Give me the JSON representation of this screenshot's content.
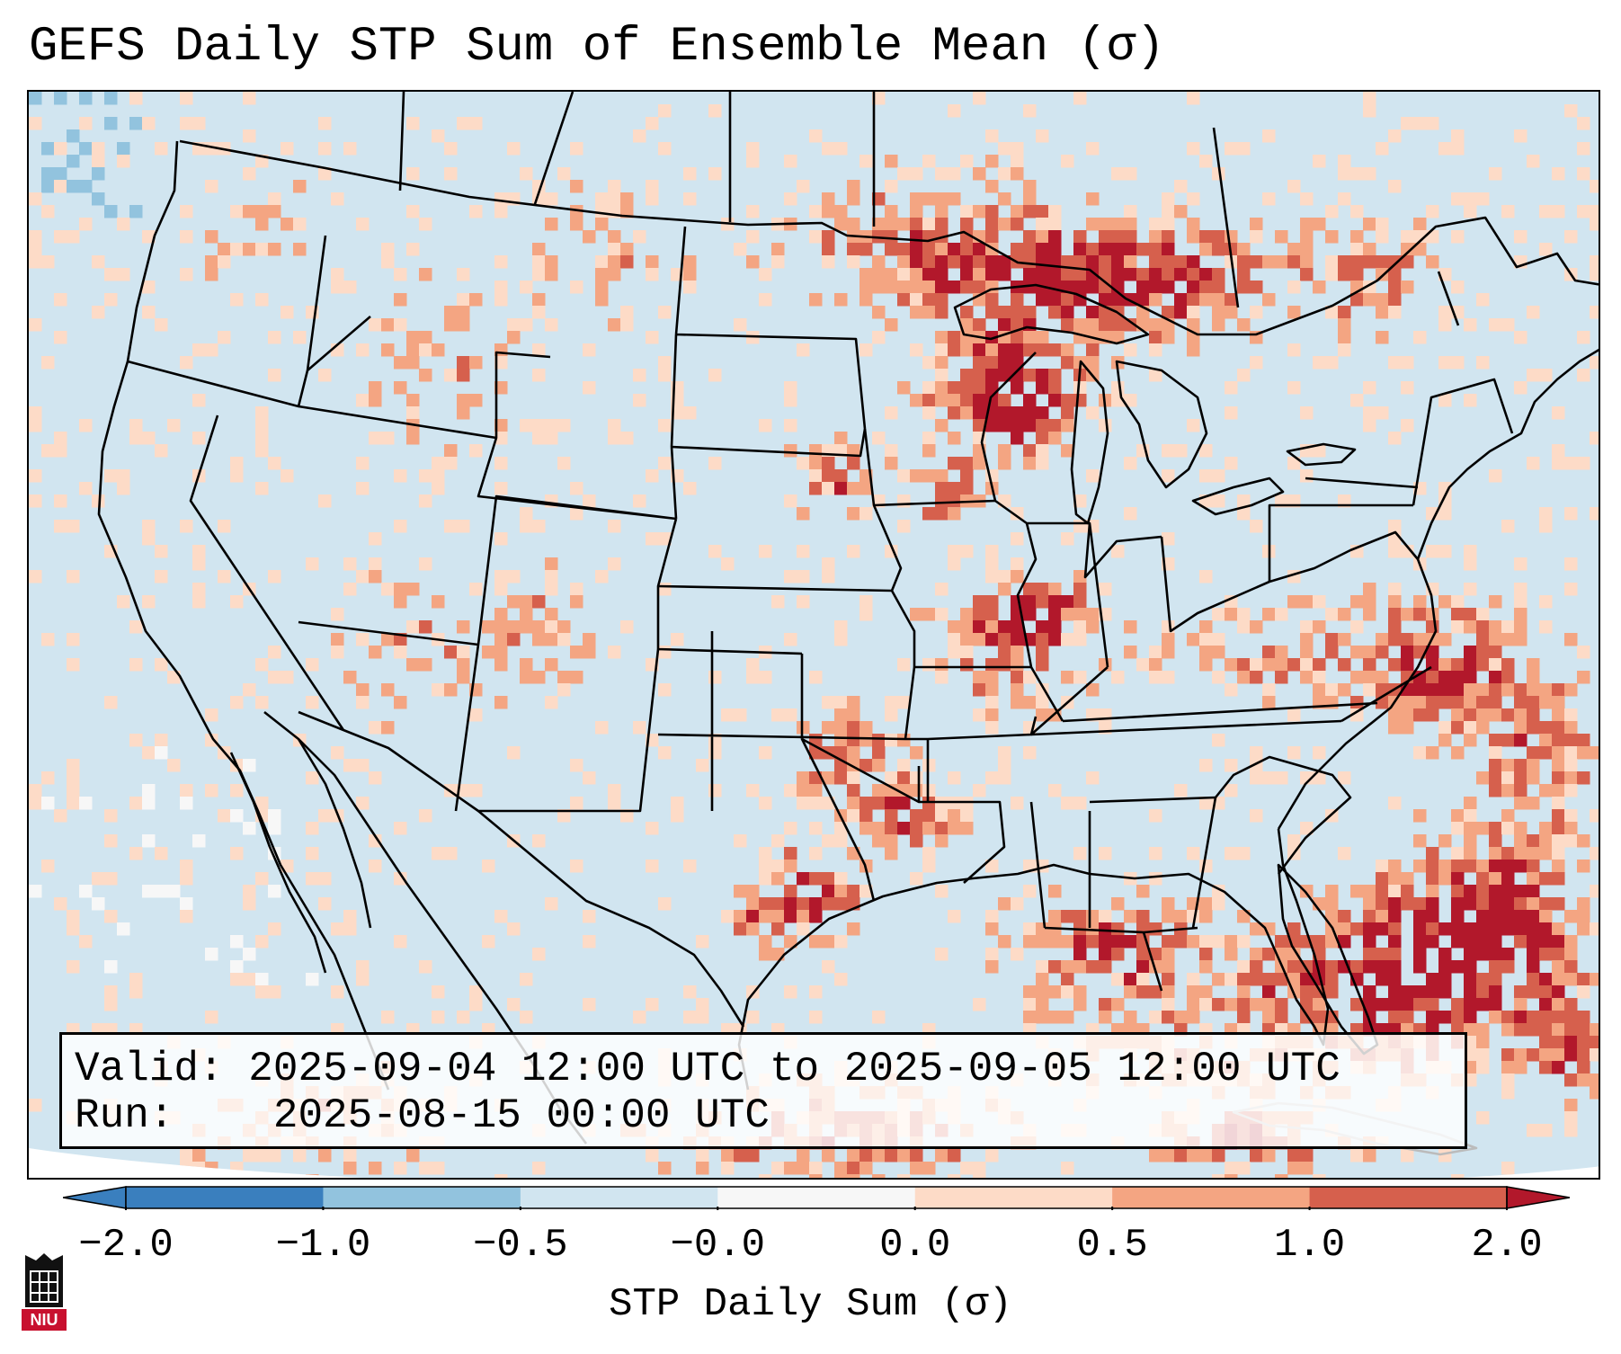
{
  "title": "GEFS Daily STP Sum of Ensemble Mean (σ)",
  "valid": {
    "label": "Valid:",
    "value": "2025-09-04 12:00 UTC to 2025-09-05 12:00 UTC"
  },
  "run": {
    "label": "Run:",
    "value": "2025-08-15 00:00 UTC"
  },
  "colorbar": {
    "label": "STP Daily Sum (σ)",
    "ticks": [
      "−2.0",
      "−1.0",
      "−0.5",
      "−0.0",
      "0.0",
      "0.5",
      "1.0",
      "2.0"
    ],
    "colors": [
      "#3a7fbe",
      "#92c3de",
      "#d1e5f0",
      "#f7f7f7",
      "#fddbc7",
      "#f4a582",
      "#d6604d",
      "#b2182b"
    ],
    "extend": "both"
  },
  "logo": {
    "text": "NIU"
  }
}
